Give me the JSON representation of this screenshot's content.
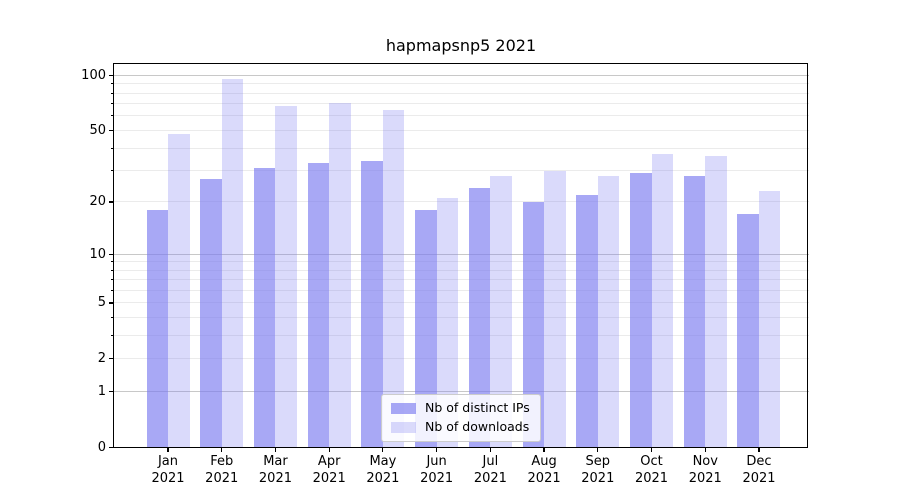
{
  "chart_data": {
    "type": "bar",
    "title": "hapmapsnp5 2021",
    "categories": [
      "Jan",
      "Feb",
      "Mar",
      "Apr",
      "May",
      "Jun",
      "Jul",
      "Aug",
      "Sep",
      "Oct",
      "Nov",
      "Dec"
    ],
    "x_tick_second_line": "2021",
    "series": [
      {
        "name": "Nb of distinct IPs",
        "color": "rgba(122,122,240,0.65)",
        "values": [
          18,
          27,
          31,
          33,
          34,
          18,
          24,
          20,
          22,
          29,
          28,
          17
        ]
      },
      {
        "name": "Nb of downloads",
        "color": "rgba(122,122,240,0.28)",
        "values": [
          48,
          96,
          68,
          71,
          65,
          21,
          28,
          30,
          28,
          37,
          36,
          23
        ]
      }
    ],
    "y_ticks": [
      0,
      1,
      2,
      5,
      10,
      20,
      50,
      100
    ],
    "y_scale": "log10(1+value)",
    "ylim": [
      0,
      116
    ],
    "grid": true,
    "legend_position": "lower-center",
    "grid_major_color": "#c8c8c8",
    "grid_minor_color": "#ebebeb"
  }
}
